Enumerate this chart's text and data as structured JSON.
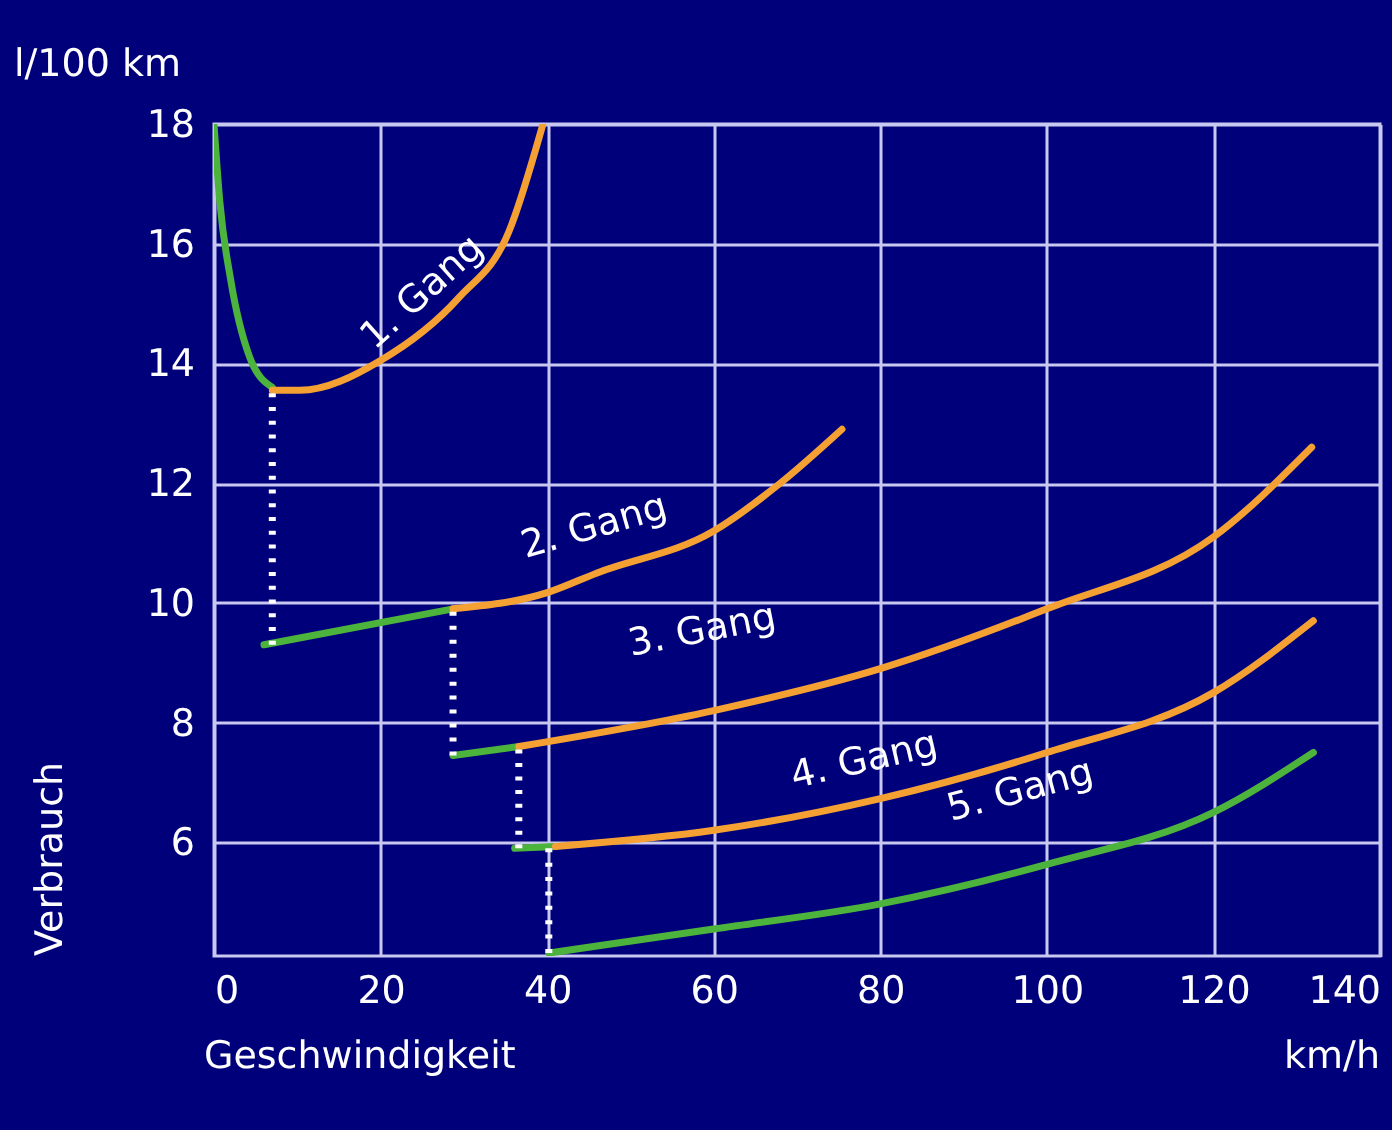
{
  "chart_data": {
    "type": "line",
    "xlabel": "Geschwindigkeit",
    "ylabel": "Verbrauch",
    "xlim": [
      0,
      140
    ],
    "ylim": [
      4.1,
      18
    ],
    "xticks": [
      0,
      20,
      40,
      60,
      80,
      100,
      120,
      140
    ],
    "yticks": [
      6,
      8,
      10,
      12,
      14,
      16,
      18
    ],
    "grid": true,
    "marker": "none",
    "series": [
      {
        "color": "#4cb33c",
        "x": [
          0,
          0.7,
          2,
          4.3,
          7
        ],
        "values": [
          18,
          16.7,
          15.4,
          14.1,
          13.6
        ]
      },
      {
        "color": "#f5a033",
        "x": [
          7,
          10.3,
          20,
          29.4,
          35.4,
          39.5
        ],
        "values": [
          13.55,
          13.55,
          14.05,
          15.1,
          16.2,
          18
        ]
      },
      {
        "color": "#4cb33c",
        "x": [
          6,
          28.7
        ],
        "values": [
          9.3,
          9.9
        ]
      },
      {
        "color": "#f5a033",
        "x": [
          28.7,
          40,
          46,
          60,
          68,
          75.4
        ],
        "values": [
          9.9,
          10.17,
          10.5,
          11.2,
          12,
          12.9
        ]
      },
      {
        "color": "#4cb33c",
        "x": [
          28.7,
          36.6
        ],
        "values": [
          7.45,
          7.6
        ]
      },
      {
        "color": "#f5a033",
        "x": [
          36.6,
          60,
          80,
          100,
          120,
          131.8
        ],
        "values": [
          7.6,
          8.2,
          8.9,
          9.9,
          11.1,
          12.6
        ]
      },
      {
        "color": "#4cb33c",
        "x": [
          36.1,
          41
        ],
        "values": [
          5.9,
          5.93
        ]
      },
      {
        "color": "#f5a033",
        "x": [
          41,
          60,
          80,
          100,
          120,
          132
        ],
        "values": [
          5.93,
          6.2,
          6.73,
          7.5,
          8.5,
          9.7
        ]
      },
      {
        "color": "#4cb33c",
        "x": [
          40.2,
          60,
          80,
          100,
          120,
          132
        ],
        "values": [
          4.15,
          4.55,
          4.97,
          5.63,
          6.5,
          7.5
        ]
      },
      {
        "color": "#ffffff",
        "line_style": "dotted",
        "x": [
          7,
          7
        ],
        "values": [
          13.5,
          9.3
        ]
      },
      {
        "color": "#ffffff",
        "line_style": "dotted",
        "x": [
          28.7,
          28.7
        ],
        "values": [
          9.85,
          7.45
        ]
      },
      {
        "color": "#ffffff",
        "line_style": "dotted",
        "x": [
          36.6,
          36.6
        ],
        "values": [
          7.55,
          5.9
        ]
      },
      {
        "color": "#ffffff",
        "line_style": "dotted",
        "x": [
          40.2,
          40.2
        ],
        "values": [
          5.9,
          4.15
        ]
      }
    ],
    "annotations": [
      "l/100 km",
      "km/h",
      "1. Gang",
      "2. Gang",
      "3. Gang",
      "4. Gang",
      "5. Gang"
    ]
  }
}
